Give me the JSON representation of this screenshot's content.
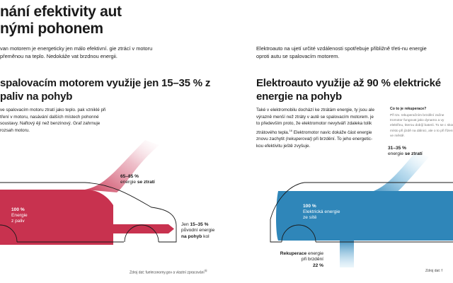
{
  "left": {
    "title_lines": [
      "nání efektivity aut",
      "nými pohonem"
    ],
    "intro": "van motorem je energeticky jen málo efektivní. gie ztrácí v motoru přeměnou na teplo. Nedokáže vat brzdnou energii.",
    "subtitle": "spalovacím motorem využije jen 15–35 % z paliv na pohyb",
    "body": "ve spalovacím motoru ztratí jako teplo. pak vzniklé při tření v motoru, nasávání dalších místech pohonné soustavy. Naftový ějí než benzinový. Graf zahrnuje rozsah motoru.",
    "loss": {
      "value": "65–85 %",
      "text": "energie",
      "bold": "se ztratí"
    },
    "input": {
      "value": "100 %",
      "line1": "Energie",
      "line2": "z paliv"
    },
    "used": {
      "prefix": "Jen",
      "value": "15–35 %",
      "line2": "původní energie",
      "bold": "na pohyb",
      "tail": "kol"
    },
    "source": "Zdroj dat: fueleconomy.gov a vlastní zpracování",
    "source_mark": "⑯"
  },
  "right": {
    "intro": "Elektroauto na ujetí určité vzdálenosti spotřebuje přibližně třeti-nu energie oproti autu se spalovacím motorem.",
    "subtitle": "Elektroauto využije až 90 % elektrické energie na pohyb",
    "body_before": "Také v elektromobilu dochází ke ztrátám energie, ty jsou ale výrazně menší než ztráty v autě se spalovacím motorem. je to především proto, že elektromotor nevytváří zdaleka tolik ztrátového tepla.",
    "body_mark": "16",
    "body_mid": " Elektromotor navíc dokáže část energie znovu zachytit ",
    "body_italic": "(rekuperovat)",
    "body_after": " při brzdění. To jeho energetic-kou efektivitu ještě zvyšuje.",
    "side": {
      "heading": "Co to je rekuperace?",
      "text": "Při tzv. rekuperačním brzdění začne tromotor fungovat jako dynamo a vy elektřinu, kterou dobíjí baterii. To se c skou místo při jízdě na dálnici, ale o to při řízení ve městě."
    },
    "loss": {
      "value": "31–35 %",
      "text": "energie",
      "bold": "se ztratí"
    },
    "input": {
      "value": "100 %",
      "line1": "Elektrická energie",
      "line2": "ze sítě"
    },
    "recup": {
      "bold": "Rekuperace",
      "rest": "energie",
      "line2": "při brzdění",
      "value": "22 %"
    },
    "source": "Zdroj dat: f"
  },
  "colors": {
    "crimson": "#c8324f",
    "blue": "#2f86b9",
    "blue_light": "#5fb3da",
    "car_outline": "#1a1a1a"
  }
}
